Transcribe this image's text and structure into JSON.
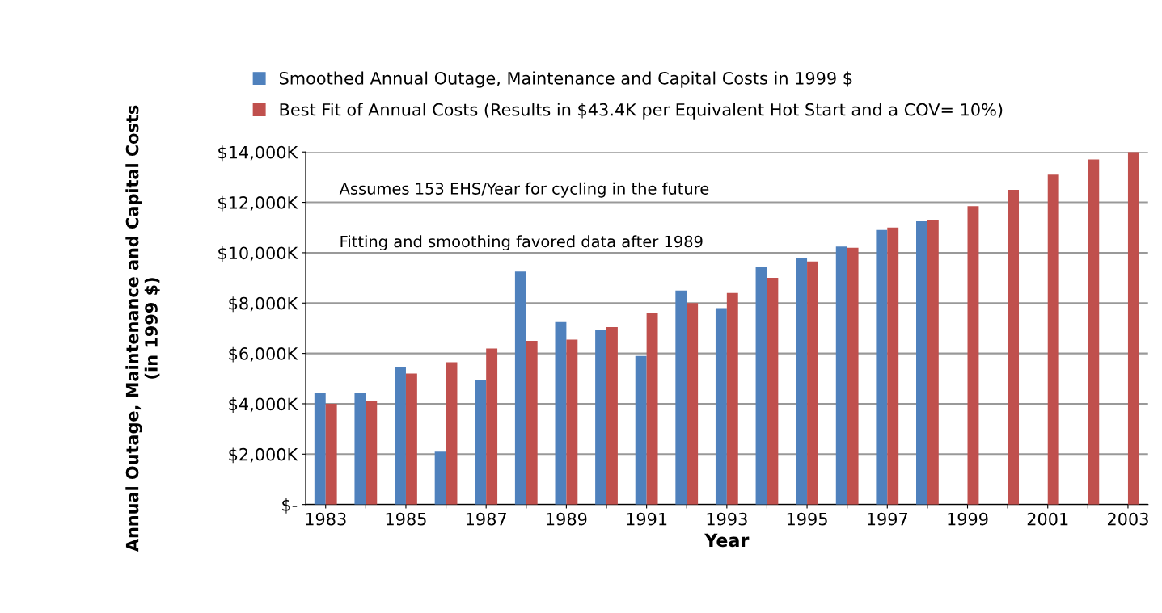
{
  "chart_data": {
    "type": "bar",
    "xlabel": "Year",
    "ylabel": "Annual Outage, Maintenance and Capital Costs\n(in 1999 $)",
    "categories": [
      "1983",
      null,
      "1985",
      null,
      "1987",
      null,
      "1989",
      null,
      "1991",
      null,
      "1993",
      null,
      "1995",
      null,
      "1997",
      null,
      "1999",
      null,
      "2001",
      null,
      "2003"
    ],
    "series": [
      {
        "name": "Smoothed Annual Outage, Maintenance and Capital Costs in 1999 $",
        "color": "#4f81bd",
        "values": [
          4450,
          4450,
          5450,
          2100,
          4950,
          9250,
          7250,
          6950,
          5900,
          8500,
          7800,
          9450,
          9800,
          10250,
          10900,
          11250,
          null,
          null,
          null,
          null,
          null
        ]
      },
      {
        "name": "Best Fit of Annual Costs (Results in $43.4K per Equivalent Hot Start and a COV= 10%)",
        "color": "#c0504d",
        "values": [
          4000,
          4100,
          5200,
          5650,
          6200,
          6500,
          6550,
          7050,
          7600,
          8000,
          8400,
          9000,
          9650,
          10200,
          11000,
          11300,
          11850,
          12500,
          13100,
          13700,
          14000
        ]
      }
    ],
    "ylim": [
      0,
      14000
    ],
    "yticks": [
      {
        "value": 0,
        "label": "$-"
      },
      {
        "value": 2000,
        "label": "$2,000K"
      },
      {
        "value": 4000,
        "label": "$4,000K"
      },
      {
        "value": 6000,
        "label": "$6,000K"
      },
      {
        "value": 8000,
        "label": "$8,000K"
      },
      {
        "value": 10000,
        "label": "$10,000K"
      },
      {
        "value": 12000,
        "label": "$12,000K"
      },
      {
        "value": 14000,
        "label": "$14,000K"
      }
    ],
    "grid": "y",
    "legend": "top",
    "annotations": [
      "Assumes 153 EHS/Year for cycling in the future",
      "Fitting and smoothing favored data after 1989"
    ]
  }
}
